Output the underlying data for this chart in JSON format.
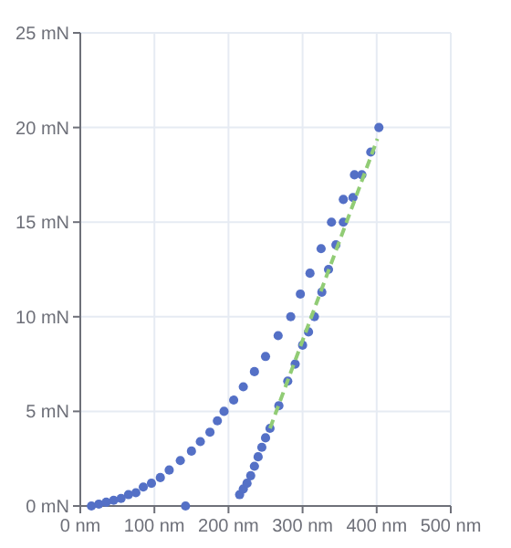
{
  "chart_data": {
    "type": "scatter",
    "xlim": [
      0,
      500
    ],
    "ylim": [
      0,
      25
    ],
    "xticks": [
      {
        "value": 0,
        "label": "0 nm"
      },
      {
        "value": 100,
        "label": "100 nm"
      },
      {
        "value": 200,
        "label": "200 nm"
      },
      {
        "value": 300,
        "label": "300 nm"
      },
      {
        "value": 400,
        "label": "400 nm"
      },
      {
        "value": 500,
        "label": "500 nm"
      }
    ],
    "yticks": [
      {
        "value": 0,
        "label": "0 mN"
      },
      {
        "value": 5,
        "label": "5 mN"
      },
      {
        "value": 10,
        "label": "10 mN"
      },
      {
        "value": 15,
        "label": "15 mN"
      },
      {
        "value": 20,
        "label": "20 mN"
      },
      {
        "value": 25,
        "label": "25 mN"
      }
    ],
    "grid": true,
    "marker": "circle",
    "series": [
      {
        "color": "#5470c6",
        "x": [
          15,
          25,
          35,
          45,
          55,
          65,
          75,
          85,
          96,
          108,
          120,
          135,
          142,
          150,
          162,
          175,
          185,
          194,
          207,
          220,
          235,
          250,
          267,
          284,
          297,
          310,
          325,
          339,
          355,
          370
        ],
        "values": [
          0,
          0.1,
          0.2,
          0.3,
          0.4,
          0.6,
          0.7,
          1,
          1.2,
          1.5,
          1.9,
          2.4,
          0,
          2.9,
          3.4,
          3.9,
          4.5,
          5,
          5.6,
          6.3,
          7.1,
          7.9,
          9,
          10,
          11.2,
          12.3,
          13.6,
          15,
          16.2,
          17.5
        ]
      },
      {
        "color": "#5470c6",
        "x": [
          215,
          220,
          225,
          230,
          235,
          240,
          245,
          250,
          256,
          268,
          280,
          290,
          300,
          308,
          316,
          326,
          335,
          345,
          355,
          368,
          380,
          392,
          403
        ],
        "values": [
          0.6,
          0.9,
          1.2,
          1.6,
          2.1,
          2.6,
          3.1,
          3.6,
          4.1,
          5.3,
          6.6,
          7.5,
          8.5,
          9.2,
          10,
          11.3,
          12.5,
          13.8,
          15,
          16.3,
          17.5,
          18.7,
          20
        ]
      },
      {
        "type": "line",
        "color": "#91cc75",
        "line_style": "dashed",
        "marker": "none",
        "x": [
          256,
          401
        ],
        "values": [
          4.1,
          19.4
        ]
      }
    ]
  }
}
